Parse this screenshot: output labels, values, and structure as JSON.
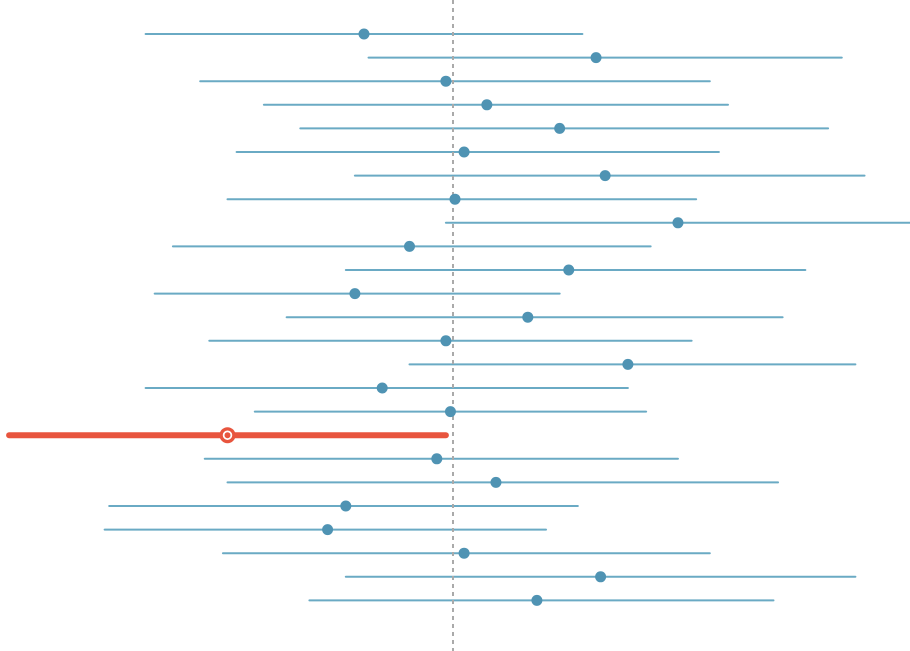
{
  "chart_data": {
    "type": "interval",
    "reference_value": 0.5,
    "x_range": [
      0.0,
      1.0
    ],
    "intervals": [
      {
        "estimate": 0.4,
        "lower": 0.16,
        "upper": 0.64,
        "highlighted": false
      },
      {
        "estimate": 0.655,
        "lower": 0.405,
        "upper": 0.925,
        "highlighted": false
      },
      {
        "estimate": 0.49,
        "lower": 0.22,
        "upper": 0.78,
        "highlighted": false
      },
      {
        "estimate": 0.535,
        "lower": 0.29,
        "upper": 0.8,
        "highlighted": false
      },
      {
        "estimate": 0.615,
        "lower": 0.33,
        "upper": 0.91,
        "highlighted": false
      },
      {
        "estimate": 0.51,
        "lower": 0.26,
        "upper": 0.79,
        "highlighted": false
      },
      {
        "estimate": 0.665,
        "lower": 0.39,
        "upper": 0.95,
        "highlighted": false
      },
      {
        "estimate": 0.5,
        "lower": 0.25,
        "upper": 0.765,
        "highlighted": false
      },
      {
        "estimate": 0.745,
        "lower": 0.49,
        "upper": 1.0,
        "highlighted": false
      },
      {
        "estimate": 0.45,
        "lower": 0.19,
        "upper": 0.715,
        "highlighted": false
      },
      {
        "estimate": 0.625,
        "lower": 0.38,
        "upper": 0.885,
        "highlighted": false
      },
      {
        "estimate": 0.39,
        "lower": 0.17,
        "upper": 0.615,
        "highlighted": false
      },
      {
        "estimate": 0.58,
        "lower": 0.315,
        "upper": 0.86,
        "highlighted": false
      },
      {
        "estimate": 0.49,
        "lower": 0.23,
        "upper": 0.76,
        "highlighted": false
      },
      {
        "estimate": 0.69,
        "lower": 0.45,
        "upper": 0.94,
        "highlighted": false
      },
      {
        "estimate": 0.42,
        "lower": 0.16,
        "upper": 0.69,
        "highlighted": false
      },
      {
        "estimate": 0.495,
        "lower": 0.28,
        "upper": 0.71,
        "highlighted": false
      },
      {
        "estimate": 0.25,
        "lower": 0.01,
        "upper": 0.49,
        "highlighted": true
      },
      {
        "estimate": 0.48,
        "lower": 0.225,
        "upper": 0.745,
        "highlighted": false
      },
      {
        "estimate": 0.545,
        "lower": 0.25,
        "upper": 0.855,
        "highlighted": false
      },
      {
        "estimate": 0.38,
        "lower": 0.12,
        "upper": 0.635,
        "highlighted": false
      },
      {
        "estimate": 0.36,
        "lower": 0.115,
        "upper": 0.6,
        "highlighted": false
      },
      {
        "estimate": 0.51,
        "lower": 0.245,
        "upper": 0.78,
        "highlighted": false
      },
      {
        "estimate": 0.66,
        "lower": 0.38,
        "upper": 0.94,
        "highlighted": false
      },
      {
        "estimate": 0.59,
        "lower": 0.34,
        "upper": 0.85,
        "highlighted": false
      }
    ],
    "colors": {
      "interval": "#6aaac4",
      "point": "#4f93b3",
      "highlight": "#e8553e",
      "reference": "#aaaaaa"
    },
    "grid": false,
    "legend": "none"
  }
}
